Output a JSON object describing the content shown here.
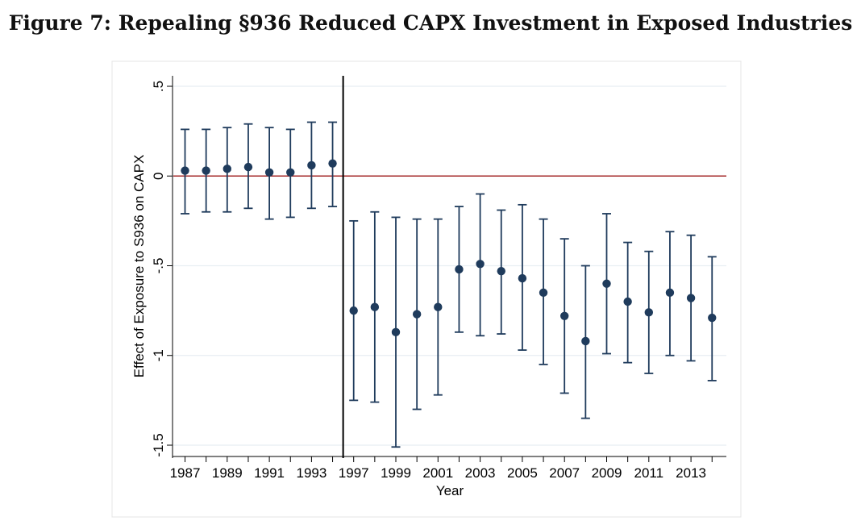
{
  "title": "Figure 7: Repealing §936 Reduced CAPX Investment in Exposed Industries",
  "chart_data": {
    "type": "scatter",
    "title": "Figure 7: Repealing §936 Reduced CAPX Investment in Exposed Industries",
    "xlabel": "Year",
    "ylabel": "Effect of Exposure to S936 on CAPX",
    "ylim": [
      -1.5,
      0.5
    ],
    "yticks": [
      0.5,
      0,
      -0.5,
      -1,
      -1.5
    ],
    "ytick_labels": [
      ".5",
      "0",
      "-.5",
      "-1",
      "-1.5"
    ],
    "xtick_labels": [
      "1987",
      "1989",
      "1991",
      "1993",
      "1997",
      "1999",
      "2001",
      "2003",
      "2005",
      "2007",
      "2009",
      "2011",
      "2013"
    ],
    "grid": true,
    "zero_line_color": "#a52a2a",
    "marker_color": "#1f3b5c",
    "break_line_after": "1994",
    "series": [
      {
        "points": [
          {
            "x": "1987",
            "y": 0.03,
            "lo": -0.21,
            "hi": 0.26
          },
          {
            "x": "1988",
            "y": 0.03,
            "lo": -0.2,
            "hi": 0.26
          },
          {
            "x": "1989",
            "y": 0.04,
            "lo": -0.2,
            "hi": 0.27
          },
          {
            "x": "1990",
            "y": 0.05,
            "lo": -0.18,
            "hi": 0.29
          },
          {
            "x": "1991",
            "y": 0.02,
            "lo": -0.24,
            "hi": 0.27
          },
          {
            "x": "1992",
            "y": 0.02,
            "lo": -0.23,
            "hi": 0.26
          },
          {
            "x": "1993",
            "y": 0.06,
            "lo": -0.18,
            "hi": 0.3
          },
          {
            "x": "1994",
            "y": 0.07,
            "lo": -0.17,
            "hi": 0.3
          },
          {
            "x": "1996",
            "y": -0.75,
            "lo": -1.25,
            "hi": -0.25
          },
          {
            "x": "1997",
            "y": -0.73,
            "lo": -1.26,
            "hi": -0.2
          },
          {
            "x": "1998",
            "y": -0.87,
            "lo": -1.51,
            "hi": -0.23
          },
          {
            "x": "1999",
            "y": -0.77,
            "lo": -1.3,
            "hi": -0.24
          },
          {
            "x": "2000",
            "y": -0.73,
            "lo": -1.22,
            "hi": -0.24
          },
          {
            "x": "2001",
            "y": -0.52,
            "lo": -0.87,
            "hi": -0.17
          },
          {
            "x": "2002",
            "y": -0.49,
            "lo": -0.89,
            "hi": -0.1
          },
          {
            "x": "2003",
            "y": -0.53,
            "lo": -0.88,
            "hi": -0.19
          },
          {
            "x": "2004",
            "y": -0.57,
            "lo": -0.97,
            "hi": -0.16
          },
          {
            "x": "2005",
            "y": -0.65,
            "lo": -1.05,
            "hi": -0.24
          },
          {
            "x": "2006",
            "y": -0.78,
            "lo": -1.21,
            "hi": -0.35
          },
          {
            "x": "2007",
            "y": -0.92,
            "lo": -1.35,
            "hi": -0.5
          },
          {
            "x": "2008",
            "y": -0.6,
            "lo": -0.99,
            "hi": -0.21
          },
          {
            "x": "2009",
            "y": -0.7,
            "lo": -1.04,
            "hi": -0.37
          },
          {
            "x": "2010",
            "y": -0.76,
            "lo": -1.1,
            "hi": -0.42
          },
          {
            "x": "2011",
            "y": -0.65,
            "lo": -1.0,
            "hi": -0.31
          },
          {
            "x": "2012",
            "y": -0.68,
            "lo": -1.03,
            "hi": -0.33
          },
          {
            "x": "2013",
            "y": -0.79,
            "lo": -1.14,
            "hi": -0.45
          }
        ]
      }
    ]
  }
}
